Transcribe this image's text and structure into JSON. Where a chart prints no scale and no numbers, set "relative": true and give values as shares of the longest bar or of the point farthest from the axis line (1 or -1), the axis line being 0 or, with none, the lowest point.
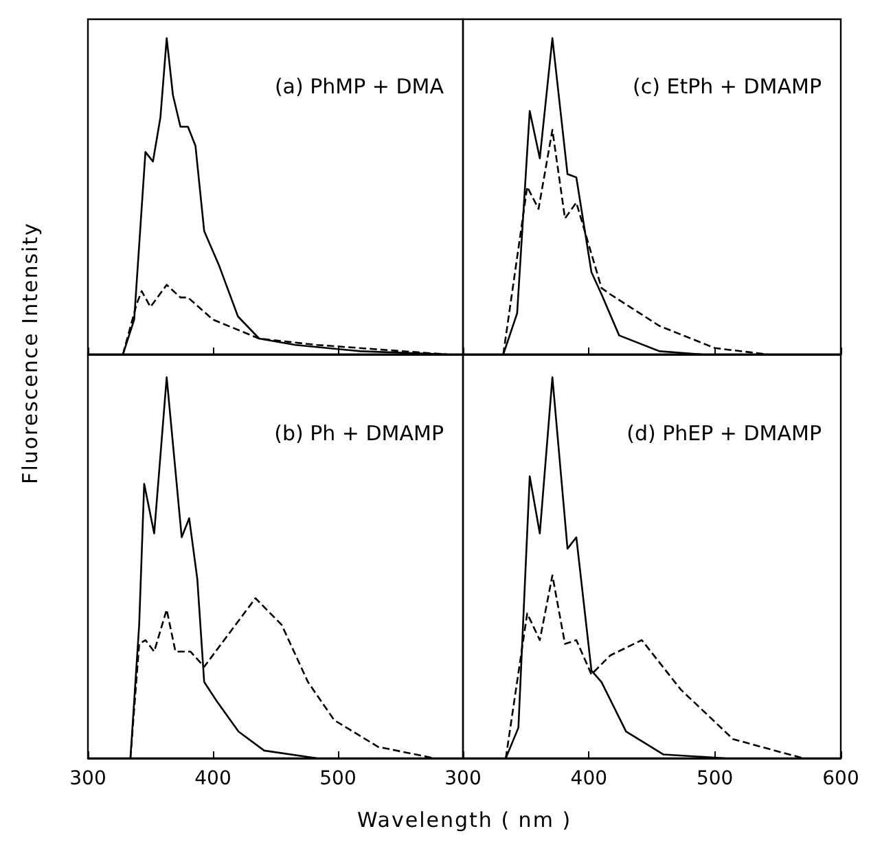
{
  "chart_data": [
    {
      "type": "line",
      "relative": true,
      "ylabel": "Fluorescence Intensity",
      "annotations": [
        "(a) PhMP + DMA"
      ],
      "xlim": [
        300,
        600
      ],
      "xticks": [
        {
          "value": 300,
          "label": null
        },
        {
          "value": 400,
          "label": null
        },
        {
          "value": 500,
          "label": null
        },
        {
          "value": 600,
          "label": null
        }
      ],
      "tick_labels": false,
      "grid": false,
      "marker": "none",
      "series": [
        {
          "color": "#000000",
          "line_style": "solid",
          "x": [
            328,
            337,
            346,
            352,
            358,
            363,
            368,
            374,
            380,
            386,
            393,
            405,
            420,
            437,
            466,
            518,
            587
          ],
          "values": [
            0,
            0.11,
            0.64,
            0.61,
            0.75,
            1.0,
            0.82,
            0.72,
            0.72,
            0.66,
            0.39,
            0.28,
            0.12,
            0.05,
            0.03,
            0.01,
            0
          ]
        },
        {
          "color": "#000000",
          "line_style": "dashed",
          "x": [
            328,
            339,
            343,
            350,
            363,
            374,
            380,
            400,
            437,
            483,
            587
          ],
          "values": [
            0,
            0.16,
            0.2,
            0.15,
            0.22,
            0.18,
            0.18,
            0.11,
            0.05,
            0.03,
            0
          ]
        }
      ]
    },
    {
      "type": "line",
      "relative": true,
      "annotations": [
        "(c) EtPh + DMAMP"
      ],
      "xlim": [
        300,
        600
      ],
      "xticks": [
        {
          "value": 300,
          "label": null
        },
        {
          "value": 400,
          "label": null
        },
        {
          "value": 500,
          "label": null
        },
        {
          "value": 600,
          "label": null
        }
      ],
      "tick_labels": false,
      "grid": false,
      "marker": "none",
      "series": [
        {
          "color": "#000000",
          "line_style": "solid",
          "x": [
            332,
            343,
            353,
            361,
            371,
            383,
            390,
            402,
            410,
            424,
            456,
            490
          ],
          "values": [
            0,
            0.13,
            0.77,
            0.62,
            1.0,
            0.57,
            0.56,
            0.26,
            0.19,
            0.06,
            0.01,
            0
          ]
        },
        {
          "color": "#000000",
          "line_style": "dashed",
          "x": [
            332,
            351,
            360,
            371,
            381,
            390,
            410,
            417,
            456,
            500,
            542
          ],
          "values": [
            0,
            0.53,
            0.46,
            0.71,
            0.43,
            0.48,
            0.21,
            0.19,
            0.09,
            0.02,
            0
          ]
        }
      ]
    },
    {
      "type": "line",
      "relative": true,
      "xlabel": "Wavelength ( nm )",
      "annotations": [
        "(b) Ph + DMAMP"
      ],
      "xlim": [
        300,
        600
      ],
      "xticks": [
        300,
        400,
        500,
        {
          "value": 600,
          "label": null
        }
      ],
      "tick_labels": "x",
      "grid": false,
      "marker": "none",
      "series": [
        {
          "color": "#000000",
          "line_style": "solid",
          "x": [
            334,
            341,
            345,
            353,
            363,
            375,
            381,
            387.5,
            393,
            403,
            420.5,
            441,
            483
          ],
          "values": [
            0,
            0.35,
            0.72,
            0.59,
            1.0,
            0.58,
            0.63,
            0.47,
            0.2,
            0.15,
            0.07,
            0.02,
            0
          ]
        },
        {
          "color": "#000000",
          "line_style": "dashed",
          "x": [
            334,
            341,
            346,
            353,
            363,
            370,
            382,
            393,
            413.5,
            434,
            455,
            476,
            497,
            532,
            577
          ],
          "values": [
            0,
            0.3,
            0.31,
            0.28,
            0.39,
            0.28,
            0.28,
            0.24,
            0.33,
            0.42,
            0.35,
            0.2,
            0.1,
            0.03,
            0
          ]
        }
      ]
    },
    {
      "type": "line",
      "relative": true,
      "annotations": [
        "(d) PhEP + DMAMP"
      ],
      "xlim": [
        300,
        600
      ],
      "xticks": [
        300,
        400,
        500,
        600
      ],
      "tick_labels": "x",
      "grid": false,
      "marker": "none",
      "series": [
        {
          "color": "#000000",
          "line_style": "solid",
          "x": [
            334,
            344,
            353,
            361,
            371,
            383,
            390,
            402,
            410,
            429.5,
            459,
            508
          ],
          "values": [
            0,
            0.08,
            0.74,
            0.59,
            1.0,
            0.55,
            0.58,
            0.23,
            0.2,
            0.07,
            0.01,
            0
          ]
        },
        {
          "color": "#000000",
          "line_style": "dashed",
          "x": [
            334,
            351,
            361,
            371,
            381,
            390,
            402,
            417,
            442,
            473,
            514.5,
            570
          ],
          "values": [
            0,
            0.38,
            0.31,
            0.48,
            0.3,
            0.31,
            0.22,
            0.27,
            0.31,
            0.18,
            0.05,
            0
          ]
        }
      ]
    }
  ]
}
